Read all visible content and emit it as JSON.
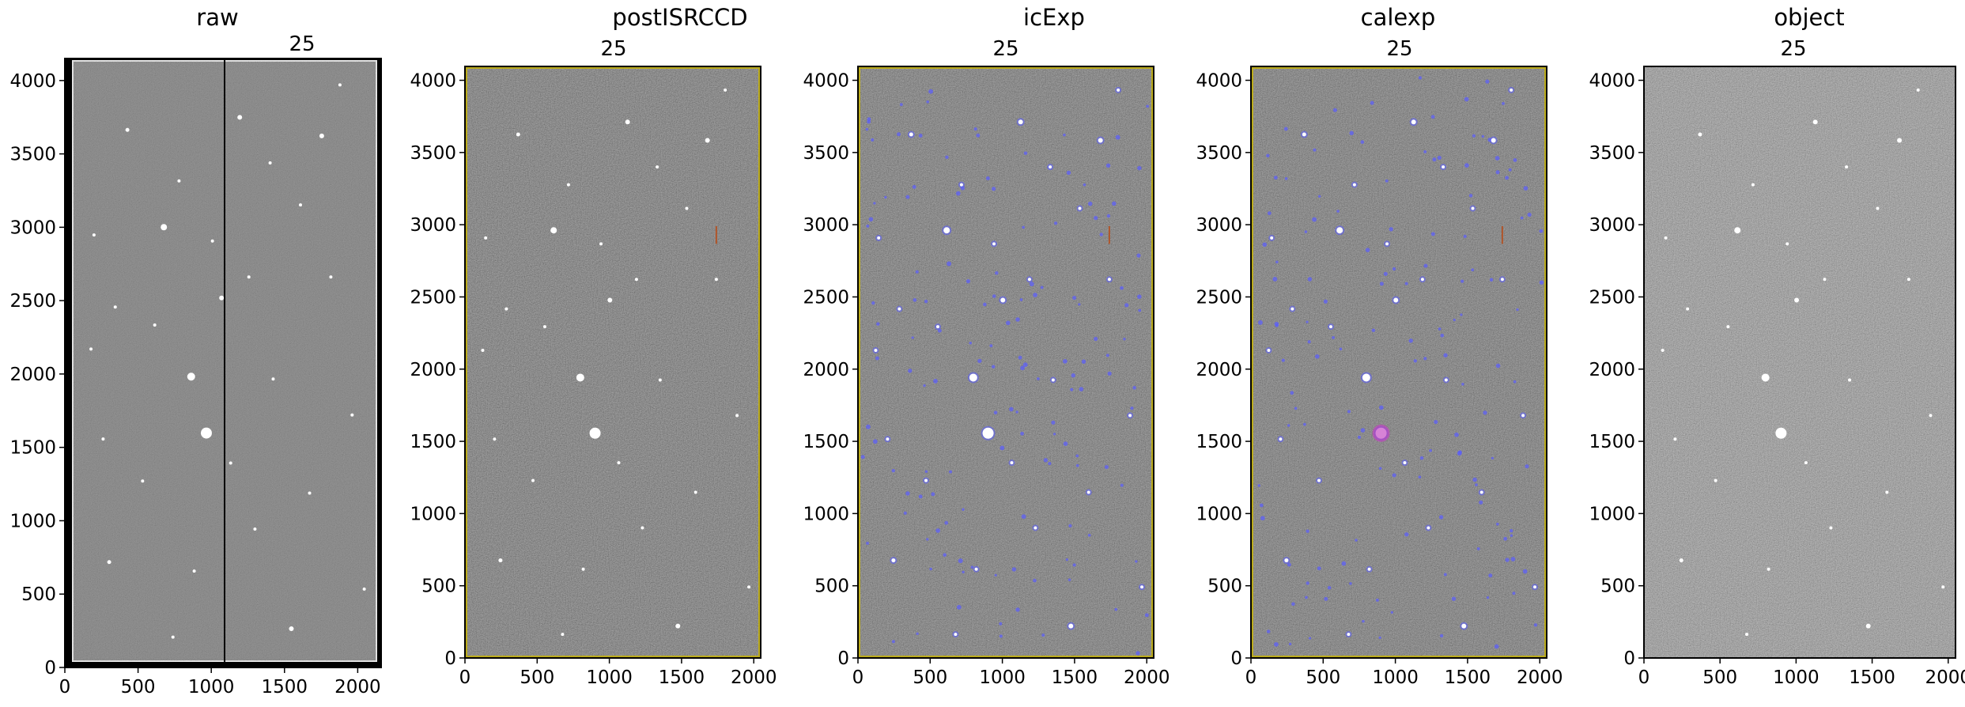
{
  "figure": {
    "panels": [
      {
        "title": "raw",
        "overlay": "25",
        "style": "raw"
      },
      {
        "title": "postISRCCD",
        "overlay": "25",
        "style": "isr"
      },
      {
        "title": "icExp",
        "overlay": "25",
        "style": "icexp"
      },
      {
        "title": "calexp",
        "overlay": "25",
        "style": "calexp"
      },
      {
        "title": "object",
        "overlay": "25",
        "style": "object"
      }
    ]
  },
  "chart_data": [
    {
      "type": "image",
      "title": "raw",
      "annotation": "25",
      "x_ticks": [
        "0",
        "500",
        "1000",
        "1500",
        "2000"
      ],
      "y_ticks": [
        "0",
        "500",
        "1000",
        "1500",
        "2000",
        "2500",
        "3000",
        "3500",
        "4000"
      ],
      "xlim": [
        0,
        2160
      ],
      "ylim": [
        0,
        4150
      ]
    },
    {
      "type": "image",
      "title": "postISRCCD",
      "annotation": "25",
      "x_ticks": [
        "0",
        "500",
        "1000",
        "1500",
        "2000"
      ],
      "y_ticks": [
        "0",
        "500",
        "1000",
        "1500",
        "2000",
        "2500",
        "3000",
        "3500",
        "4000"
      ],
      "xlim": [
        0,
        2048
      ],
      "ylim": [
        0,
        4096
      ]
    },
    {
      "type": "image",
      "title": "icExp",
      "annotation": "25",
      "x_ticks": [
        "0",
        "500",
        "1000",
        "1500",
        "2000"
      ],
      "y_ticks": [
        "0",
        "500",
        "1000",
        "1500",
        "2000",
        "2500",
        "3000",
        "3500",
        "4000"
      ],
      "xlim": [
        0,
        2048
      ],
      "ylim": [
        0,
        4096
      ]
    },
    {
      "type": "image",
      "title": "calexp",
      "annotation": "25",
      "x_ticks": [
        "0",
        "500",
        "1000",
        "1500",
        "2000"
      ],
      "y_ticks": [
        "0",
        "500",
        "1000",
        "1500",
        "2000",
        "2500",
        "3000",
        "3500",
        "4000"
      ],
      "xlim": [
        0,
        2048
      ],
      "ylim": [
        0,
        4096
      ]
    },
    {
      "type": "image",
      "title": "object",
      "annotation": "25",
      "x_ticks": [
        "0",
        "500",
        "1000",
        "1500",
        "2000"
      ],
      "y_ticks": [
        "0",
        "500",
        "1000",
        "1500",
        "2000",
        "2500",
        "3000",
        "3500",
        "4000"
      ],
      "xlim": [
        0,
        2048
      ],
      "ylim": [
        0,
        4096
      ]
    }
  ],
  "colors": {
    "mask_blue": "#5a5cff",
    "mask_yellow": "#c8b400",
    "mask_magenta": "#c040c0"
  }
}
